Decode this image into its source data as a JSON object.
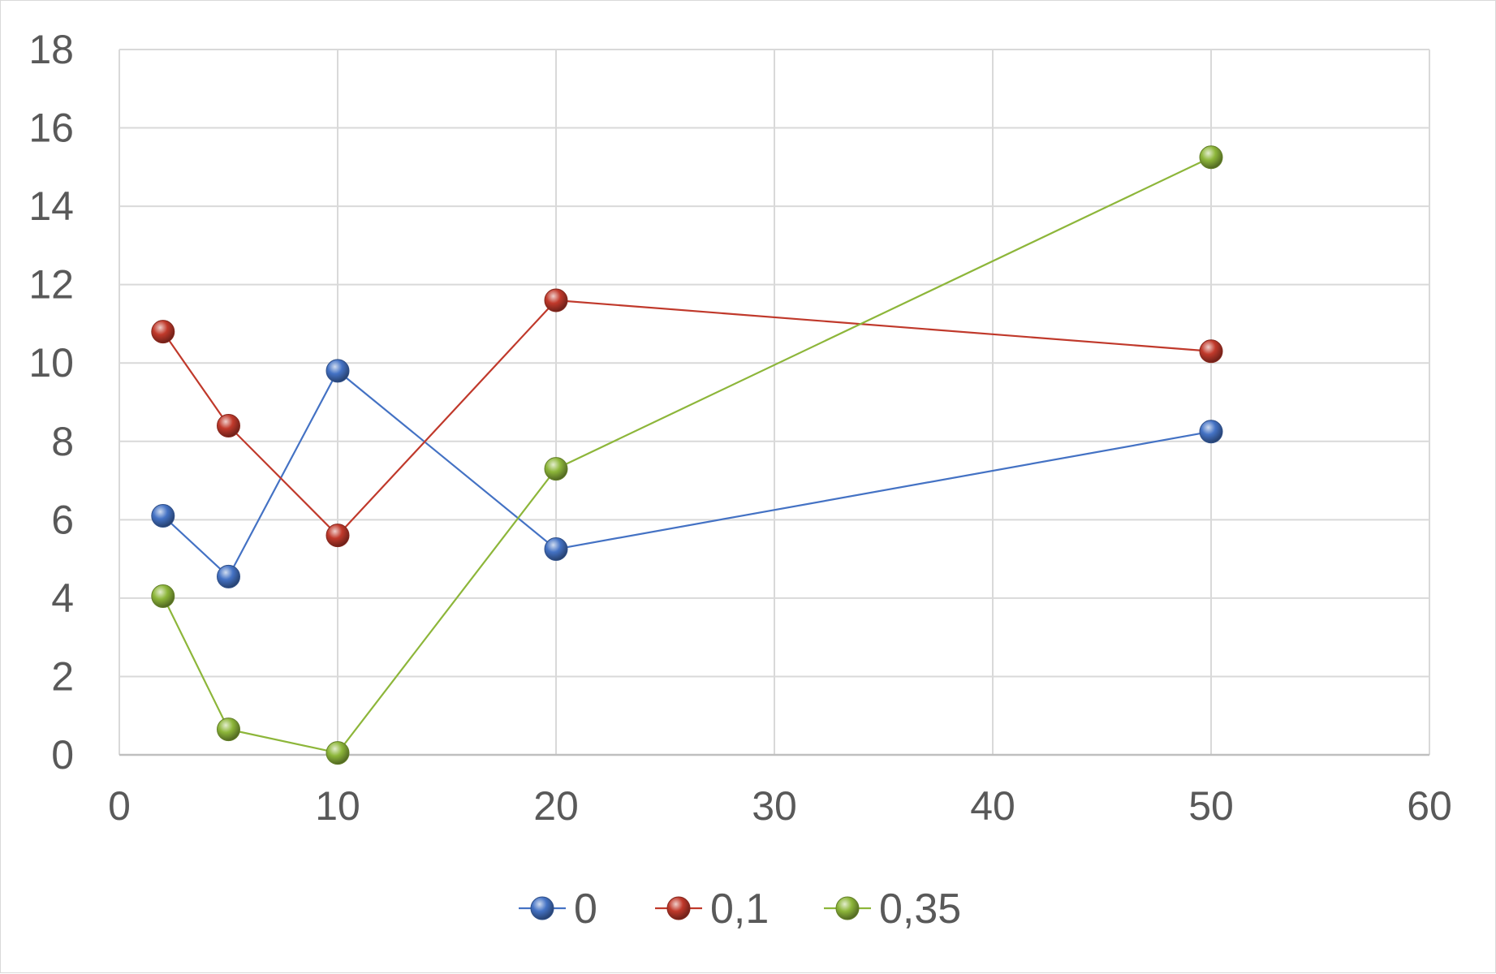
{
  "chart_data": {
    "type": "scatter",
    "title": "",
    "xlabel": "",
    "ylabel": "",
    "xlim": [
      0,
      60
    ],
    "ylim": [
      0,
      18
    ],
    "x_ticks": [
      "0",
      "10",
      "20",
      "30",
      "40",
      "50",
      "60"
    ],
    "y_ticks": [
      "0",
      "2",
      "4",
      "6",
      "8",
      "10",
      "12",
      "14",
      "16",
      "18"
    ],
    "grid": true,
    "legend_position": "bottom",
    "series": [
      {
        "name": "0",
        "color": "#4472c4",
        "points": [
          {
            "x": 2,
            "y": 6.1
          },
          {
            "x": 5,
            "y": 4.55
          },
          {
            "x": 10,
            "y": 9.8
          },
          {
            "x": 20,
            "y": 5.25
          },
          {
            "x": 50,
            "y": 8.25
          }
        ]
      },
      {
        "name": "0,1",
        "color": "#c0392b",
        "points": [
          {
            "x": 2,
            "y": 10.8
          },
          {
            "x": 5,
            "y": 8.4
          },
          {
            "x": 10,
            "y": 5.6
          },
          {
            "x": 20,
            "y": 11.6
          },
          {
            "x": 50,
            "y": 10.3
          }
        ]
      },
      {
        "name": "0,35",
        "color": "#8db63a",
        "points": [
          {
            "x": 2,
            "y": 4.05
          },
          {
            "x": 5,
            "y": 0.65
          },
          {
            "x": 10,
            "y": 0.05
          },
          {
            "x": 20,
            "y": 7.3
          },
          {
            "x": 50,
            "y": 15.25
          }
        ]
      }
    ]
  }
}
